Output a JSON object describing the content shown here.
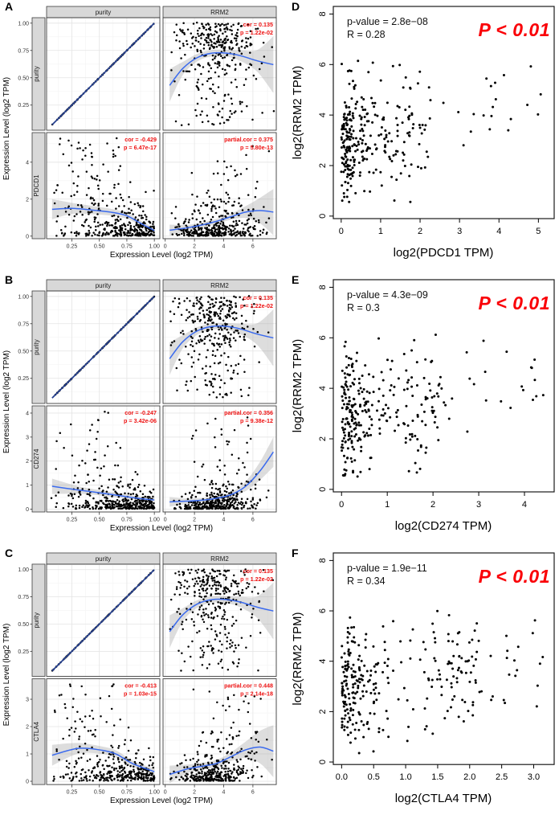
{
  "colors": {
    "point": "#000000",
    "loess_line": "#3a6aee",
    "identity_line": "#27418f",
    "ci_band": "#9e9e9e",
    "annotation_red": "#ee1111",
    "gepia_red": "#fa0007",
    "strip_bg": "#d8d8d8",
    "strip_border": "#3c3c3c",
    "panel_border": "#3c3c3c",
    "grid_major": "#e4e4e4",
    "grid_minor": "#f3f3f3",
    "axis_text": "#333333",
    "label_text": "#000000"
  },
  "chart_data": [
    {
      "panel_label": "A",
      "type": "scatter",
      "style": "timer",
      "xlabel": "Expression Level (log2 TPM)",
      "ylabel": "Expression Level (log2 TPM)",
      "col_facets": [
        "purity",
        "RRM2"
      ],
      "row_facets": [
        "purity",
        "PDCD1"
      ],
      "purity_xlim": [
        0.02,
        1.05
      ],
      "purity_xticks": [
        "0.25",
        "0.50",
        "0.75",
        "1.00"
      ],
      "purity_xtickvals": [
        0.25,
        0.5,
        0.75,
        1.0
      ],
      "rrm2_xlim": [
        -0.15,
        7.6
      ],
      "rrm2_xticks": [
        "0",
        "2",
        "4",
        "6"
      ],
      "rrm2_xtickvals": [
        0,
        2,
        4,
        6
      ],
      "purity_ylim": [
        0.02,
        1.05
      ],
      "purity_yticks": [
        "1.00",
        "0.75",
        "0.50",
        "0.25"
      ],
      "purity_ytickvals": [
        1.0,
        0.75,
        0.5,
        0.25
      ],
      "gene_ylim": [
        -0.14,
        5.6
      ],
      "gene_yticks": [
        "0",
        "2",
        "4"
      ],
      "gene_ytickvals": [
        0,
        2,
        4
      ],
      "subplots": {
        "purity_purity": {
          "kind": "identity",
          "n": 115,
          "seed": 101
        },
        "purity_rrm2": {
          "kind": "topcloud",
          "n": 340,
          "seed": 102,
          "annotation": [
            "cor = 0.135",
            "p = 1.22e-02"
          ],
          "curve": [
            [
              0.3,
              0.43,
              0.15
            ],
            [
              1.2,
              0.585,
              0.06
            ],
            [
              2.2,
              0.685,
              0.035
            ],
            [
              3.2,
              0.725,
              0.03
            ],
            [
              4.2,
              0.725,
              0.032
            ],
            [
              5.2,
              0.7,
              0.05
            ],
            [
              6.3,
              0.655,
              0.1
            ],
            [
              7.4,
              0.62,
              0.26
            ]
          ]
        },
        "gene_purity": {
          "kind": "lowcloud_neg",
          "n": 390,
          "seed": 103,
          "yscale": 0.85,
          "outlier_frac": 0.1,
          "outlier_range": [
            1.8,
            5.35
          ],
          "annotation": [
            "cor = -0.429",
            "p = 6.47e-17"
          ],
          "curve": [
            [
              0.07,
              1.45,
              0.55
            ],
            [
              0.25,
              1.5,
              0.3
            ],
            [
              0.45,
              1.4,
              0.22
            ],
            [
              0.62,
              1.28,
              0.18
            ],
            [
              0.75,
              1.1,
              0.16
            ],
            [
              0.88,
              0.68,
              0.14
            ],
            [
              1.0,
              0.3,
              0.14
            ]
          ]
        },
        "gene_rrm2": {
          "kind": "lowcloud_pos",
          "n": 390,
          "seed": 104,
          "yscale": 0.5,
          "outlier_frac": 0.1,
          "outlier_range": [
            1.8,
            5.35
          ],
          "annotation": [
            "partial.cor = 0.375",
            "p = 5.80e-13"
          ],
          "curve": [
            [
              0.3,
              0.32,
              0.3
            ],
            [
              1.5,
              0.45,
              0.16
            ],
            [
              2.5,
              0.6,
              0.13
            ],
            [
              3.5,
              0.8,
              0.13
            ],
            [
              4.5,
              1.05,
              0.16
            ],
            [
              5.5,
              1.3,
              0.32
            ],
            [
              6.5,
              1.38,
              0.7
            ],
            [
              7.4,
              1.3,
              1.25
            ]
          ]
        }
      }
    },
    {
      "panel_label": "D",
      "type": "scatter",
      "style": "gepia",
      "xlabel": "log2(PDCD1 TPM)",
      "ylabel": "log2(RRM2 TPM)",
      "pvalue_text": "p-value = 2.8e−08",
      "r_text": "R = 0.28",
      "badge_text": "P < 0.01",
      "xlim": [
        -0.2,
        5.4
      ],
      "xticks": [
        "0",
        "1",
        "2",
        "3",
        "4",
        "5"
      ],
      "xtickvals": [
        0,
        1,
        2,
        3,
        4,
        5
      ],
      "ylim": [
        -0.1,
        8.3
      ],
      "yticks": [
        "0",
        "2",
        "4",
        "6",
        "8"
      ],
      "ytickvals": [
        0,
        2,
        4,
        6,
        8
      ],
      "n": 305,
      "seed": 201,
      "x_dense_sd": 0.32,
      "x_max": 5.2
    },
    {
      "panel_label": "B",
      "type": "scatter",
      "style": "timer",
      "xlabel": "Expression Level (log2 TPM)",
      "ylabel": "Expression Level (log2 TPM)",
      "col_facets": [
        "purity",
        "RRM2"
      ],
      "row_facets": [
        "purity",
        "CD274"
      ],
      "purity_xlim": [
        0.02,
        1.05
      ],
      "purity_xticks": [
        "0.25",
        "0.50",
        "0.75",
        "1.00"
      ],
      "purity_xtickvals": [
        0.25,
        0.5,
        0.75,
        1.0
      ],
      "rrm2_xlim": [
        -0.15,
        7.6
      ],
      "rrm2_xticks": [
        "0",
        "2",
        "4",
        "6"
      ],
      "rrm2_xtickvals": [
        0,
        2,
        4,
        6
      ],
      "purity_ylim": [
        0.02,
        1.05
      ],
      "purity_yticks": [
        "1.00",
        "0.75",
        "0.50",
        "0.25"
      ],
      "purity_ytickvals": [
        1.0,
        0.75,
        0.5,
        0.25
      ],
      "gene_ylim": [
        -0.12,
        4.3
      ],
      "gene_yticks": [
        "0",
        "1",
        "2",
        "3",
        "4"
      ],
      "gene_ytickvals": [
        0,
        1,
        2,
        3,
        4
      ],
      "subplots": {
        "purity_purity": {
          "kind": "identity",
          "n": 115,
          "seed": 111
        },
        "purity_rrm2": {
          "kind": "topcloud",
          "n": 340,
          "seed": 112,
          "annotation": [
            "cor = 0.135",
            "p = 1.22e-02"
          ],
          "curve": [
            [
              0.3,
              0.43,
              0.15
            ],
            [
              1.2,
              0.585,
              0.06
            ],
            [
              2.2,
              0.685,
              0.035
            ],
            [
              3.2,
              0.725,
              0.03
            ],
            [
              4.2,
              0.725,
              0.032
            ],
            [
              5.2,
              0.7,
              0.05
            ],
            [
              6.3,
              0.655,
              0.1
            ],
            [
              7.4,
              0.62,
              0.26
            ]
          ]
        },
        "gene_purity": {
          "kind": "lowcloud_neg",
          "n": 390,
          "seed": 113,
          "yscale": 0.5,
          "outlier_frac": 0.07,
          "outlier_range": [
            1.2,
            4.1
          ],
          "annotation": [
            "cor = -0.247",
            "p = 3.42e-06"
          ],
          "curve": [
            [
              0.07,
              0.95,
              0.32
            ],
            [
              0.3,
              0.8,
              0.16
            ],
            [
              0.5,
              0.68,
              0.11
            ],
            [
              0.7,
              0.55,
              0.09
            ],
            [
              0.85,
              0.45,
              0.08
            ],
            [
              1.0,
              0.38,
              0.09
            ]
          ]
        },
        "gene_rrm2": {
          "kind": "lowcloud_pos",
          "n": 390,
          "seed": 114,
          "yscale": 0.3,
          "outlier_frac": 0.08,
          "outlier_range": [
            1.0,
            4.0
          ],
          "annotation": [
            "partial.cor = 0.356",
            "p = 9.38e-12"
          ],
          "curve": [
            [
              0.3,
              0.3,
              0.2
            ],
            [
              1.5,
              0.33,
              0.11
            ],
            [
              2.5,
              0.37,
              0.09
            ],
            [
              3.5,
              0.45,
              0.09
            ],
            [
              4.5,
              0.6,
              0.11
            ],
            [
              5.5,
              0.95,
              0.2
            ],
            [
              6.5,
              1.6,
              0.38
            ],
            [
              7.4,
              2.38,
              0.62
            ]
          ]
        }
      }
    },
    {
      "panel_label": "E",
      "type": "scatter",
      "style": "gepia",
      "xlabel": "log2(CD274 TPM)",
      "ylabel": "log2(RRM2 TPM)",
      "pvalue_text": "p-value = 4.3e−09",
      "r_text": "R = 0.3",
      "badge_text": "P < 0.01",
      "xlim": [
        -0.18,
        4.65
      ],
      "xticks": [
        "0",
        "1",
        "2",
        "3",
        "4"
      ],
      "xtickvals": [
        0,
        1,
        2,
        3,
        4
      ],
      "ylim": [
        -0.1,
        8.3
      ],
      "yticks": [
        "0",
        "2",
        "4",
        "6",
        "8"
      ],
      "ytickvals": [
        0,
        2,
        4,
        6,
        8
      ],
      "n": 300,
      "seed": 202,
      "x_dense_sd": 0.33,
      "x_max": 4.5
    },
    {
      "panel_label": "C",
      "type": "scatter",
      "style": "timer",
      "xlabel": "Expression Level (log2 TPM)",
      "ylabel": "Expression Level (log2 TPM)",
      "col_facets": [
        "purity",
        "RRM2"
      ],
      "row_facets": [
        "purity",
        "CTLA4"
      ],
      "purity_xlim": [
        0.02,
        1.05
      ],
      "purity_xticks": [
        "0.25",
        "0.50",
        "0.75",
        "1.00"
      ],
      "purity_xtickvals": [
        0.25,
        0.5,
        0.75,
        1.0
      ],
      "rrm2_xlim": [
        -0.15,
        7.6
      ],
      "rrm2_xticks": [
        "0",
        "2",
        "4",
        "6"
      ],
      "rrm2_xtickvals": [
        0,
        2,
        4,
        6
      ],
      "purity_ylim": [
        0.02,
        1.05
      ],
      "purity_yticks": [
        "1.00",
        "0.75",
        "0.50",
        "0.25"
      ],
      "purity_ytickvals": [
        1.0,
        0.75,
        0.5,
        0.25
      ],
      "gene_ylim": [
        -0.12,
        3.75
      ],
      "gene_yticks": [
        "0",
        "1",
        "2",
        "3"
      ],
      "gene_ytickvals": [
        0,
        1,
        2,
        3
      ],
      "subplots": {
        "purity_purity": {
          "kind": "identity",
          "n": 115,
          "seed": 121
        },
        "purity_rrm2": {
          "kind": "topcloud",
          "n": 340,
          "seed": 122,
          "annotation": [
            "cor = 0.135",
            "p = 1.22e-02"
          ],
          "curve": [
            [
              0.3,
              0.43,
              0.15
            ],
            [
              1.2,
              0.585,
              0.06
            ],
            [
              2.2,
              0.685,
              0.035
            ],
            [
              3.2,
              0.725,
              0.03
            ],
            [
              4.2,
              0.725,
              0.032
            ],
            [
              5.2,
              0.7,
              0.05
            ],
            [
              6.3,
              0.655,
              0.1
            ],
            [
              7.4,
              0.62,
              0.26
            ]
          ]
        },
        "gene_purity": {
          "kind": "lowcloud_neg",
          "n": 390,
          "seed": 123,
          "yscale": 0.55,
          "outlier_frac": 0.1,
          "outlier_range": [
            1.0,
            3.6
          ],
          "annotation": [
            "cor = -0.413",
            "p = 1.03e-15"
          ],
          "curve": [
            [
              0.07,
              0.95,
              0.38
            ],
            [
              0.3,
              1.2,
              0.2
            ],
            [
              0.5,
              1.15,
              0.14
            ],
            [
              0.65,
              1.0,
              0.13
            ],
            [
              0.8,
              0.65,
              0.11
            ],
            [
              1.0,
              0.35,
              0.11
            ]
          ]
        },
        "gene_rrm2": {
          "kind": "lowcloud_pos",
          "n": 390,
          "seed": 124,
          "yscale": 0.35,
          "outlier_frac": 0.1,
          "outlier_range": [
            1.0,
            3.55
          ],
          "annotation": [
            "partial.cor = 0.448",
            "p = 2.14e-18"
          ],
          "curve": [
            [
              0.3,
              0.25,
              0.32
            ],
            [
              1.5,
              0.45,
              0.16
            ],
            [
              2.5,
              0.55,
              0.13
            ],
            [
              3.5,
              0.65,
              0.13
            ],
            [
              4.5,
              0.9,
              0.16
            ],
            [
              5.5,
              1.15,
              0.3
            ],
            [
              6.5,
              1.25,
              0.6
            ],
            [
              7.4,
              1.1,
              0.95
            ]
          ]
        }
      }
    },
    {
      "panel_label": "F",
      "type": "scatter",
      "style": "gepia",
      "xlabel": "log2(CTLA4 TPM)",
      "ylabel": "log2(RRM2 TPM)",
      "pvalue_text": "p-value = 1.9e−11",
      "r_text": "R = 0.34",
      "badge_text": "P < 0.01",
      "xlim": [
        -0.13,
        3.32
      ],
      "xticks": [
        "0.0",
        "0.5",
        "1.0",
        "1.5",
        "2.0",
        "2.5",
        "3.0"
      ],
      "xtickvals": [
        0,
        0.5,
        1,
        1.5,
        2,
        2.5,
        3
      ],
      "ylim": [
        -0.1,
        8.3
      ],
      "yticks": [
        "0",
        "2",
        "4",
        "6",
        "8"
      ],
      "ytickvals": [
        0,
        2,
        4,
        6,
        8
      ],
      "n": 300,
      "seed": 203,
      "x_dense_sd": 0.28,
      "x_max": 3.2
    }
  ]
}
